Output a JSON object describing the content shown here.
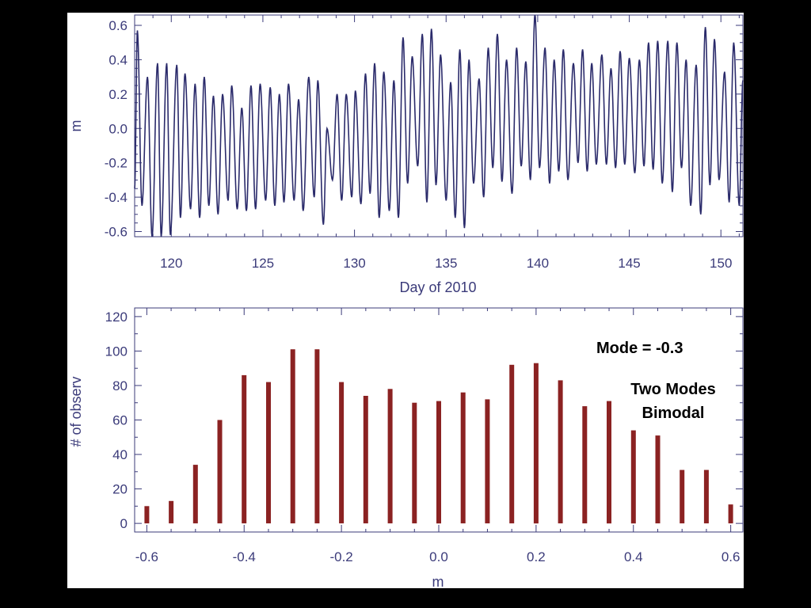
{
  "colors": {
    "background": "#000000",
    "panel": "#ffffff",
    "axis": "#3b3b7a",
    "line": "#2b2b6b",
    "bar": "#8b2222",
    "annotation": "#000000"
  },
  "chart_data": [
    {
      "type": "line",
      "title": "",
      "xlabel": "Day of 2010",
      "ylabel": "m",
      "xlim": [
        118,
        151.2
      ],
      "ylim": [
        -0.63,
        0.66
      ],
      "xticks": [
        120,
        125,
        130,
        135,
        140,
        145,
        150
      ],
      "xtick_labels": [
        "120",
        "125",
        "130",
        "135",
        "140",
        "145",
        "150"
      ],
      "yticks": [
        0.6,
        0.4,
        0.2,
        0.0,
        -0.2,
        -0.4,
        -0.6
      ],
      "ytick_labels": [
        "0.6",
        "0.4",
        "0.2",
        "0.0",
        "-0.2",
        "-0.4",
        "-0.6"
      ],
      "grid": false,
      "series": [
        {
          "period_days": 0.5175,
          "x": [
            118.15,
            118.4,
            118.7,
            118.95,
            119.25,
            119.45,
            119.75,
            119.95,
            120.3,
            120.5,
            120.75,
            121.05,
            121.3,
            121.55,
            121.8,
            122.05,
            122.3,
            122.55,
            122.8,
            123.1,
            123.3,
            123.6,
            123.85,
            124.1,
            124.35,
            124.6,
            124.85,
            125.15,
            125.4,
            125.65,
            125.9,
            126.15,
            126.4,
            126.7,
            126.95,
            127.2,
            127.5,
            127.8,
            128.0,
            128.3,
            128.5,
            128.8,
            129.05,
            129.3,
            129.55,
            129.85,
            130.05,
            130.35,
            130.6,
            130.85,
            131.1,
            131.35,
            131.6,
            131.9,
            132.15,
            132.4,
            132.65,
            132.9,
            133.15,
            133.45,
            133.7,
            133.95,
            134.2,
            134.45,
            134.7,
            135.0,
            135.25,
            135.5,
            135.75,
            136.0,
            136.25,
            136.5,
            136.8,
            137.05,
            137.3,
            137.55,
            137.8,
            138.05,
            138.3,
            138.6,
            138.85,
            139.1,
            139.35,
            139.6,
            139.85,
            140.1,
            140.4,
            140.65,
            140.9,
            141.15,
            141.4,
            141.65,
            141.95,
            142.2,
            142.45,
            142.7,
            142.95,
            143.2,
            143.5,
            143.75,
            144.0,
            144.25,
            144.5,
            144.75,
            145.0,
            145.3,
            145.55,
            145.8,
            146.05,
            146.3,
            146.55,
            146.8,
            147.1,
            147.35,
            147.6,
            147.85,
            148.1,
            148.35,
            148.65,
            148.9,
            149.15,
            149.4,
            149.65,
            149.9,
            150.2,
            150.45,
            150.7,
            151.0
          ],
          "y": [
            0.57,
            -0.45,
            0.3,
            -0.63,
            0.38,
            -0.63,
            0.38,
            -0.62,
            0.37,
            -0.52,
            0.32,
            -0.47,
            0.26,
            -0.52,
            0.3,
            -0.45,
            0.19,
            -0.5,
            0.2,
            -0.42,
            0.25,
            -0.47,
            0.12,
            -0.48,
            0.25,
            -0.47,
            0.26,
            -0.42,
            0.24,
            -0.45,
            0.2,
            -0.43,
            0.26,
            -0.42,
            0.17,
            -0.48,
            0.3,
            -0.4,
            0.28,
            -0.56,
            0.0,
            -0.3,
            0.2,
            -0.42,
            0.2,
            -0.4,
            0.22,
            -0.44,
            0.32,
            -0.38,
            0.38,
            -0.52,
            0.33,
            -0.48,
            0.28,
            -0.52,
            0.53,
            -0.32,
            0.42,
            -0.22,
            0.55,
            -0.43,
            0.58,
            -0.33,
            0.43,
            -0.42,
            0.27,
            -0.52,
            0.46,
            -0.58,
            0.4,
            -0.32,
            0.29,
            -0.4,
            0.47,
            -0.23,
            0.55,
            -0.31,
            0.4,
            -0.38,
            0.47,
            -0.22,
            0.39,
            -0.3,
            0.67,
            -0.23,
            0.47,
            -0.32,
            0.4,
            -0.25,
            0.46,
            -0.3,
            0.38,
            -0.2,
            0.46,
            -0.25,
            0.38,
            -0.21,
            0.43,
            -0.21,
            0.35,
            -0.23,
            0.45,
            -0.21,
            0.41,
            -0.26,
            0.4,
            -0.22,
            0.5,
            -0.24,
            0.51,
            -0.32,
            0.51,
            -0.37,
            0.5,
            -0.23,
            0.4,
            -0.45,
            0.37,
            -0.5,
            0.59,
            -0.33,
            0.52,
            -0.3,
            0.33,
            -0.43,
            0.5,
            -0.45
          ]
        }
      ]
    },
    {
      "type": "bar",
      "title": "",
      "xlabel": "m",
      "ylabel": "# of observ",
      "xlim": [
        -0.625,
        0.625
      ],
      "ylim": [
        -5,
        125
      ],
      "xticks": [
        -0.6,
        -0.4,
        -0.2,
        0.0,
        0.2,
        0.4,
        0.6
      ],
      "xtick_labels": [
        "-0.6",
        "-0.4",
        "-0.2",
        "0.0",
        "0.2",
        "0.4",
        "0.6"
      ],
      "yticks": [
        120,
        100,
        80,
        60,
        40,
        20,
        0
      ],
      "ytick_labels": [
        "120",
        "100",
        "80",
        "60",
        "40",
        "20",
        "0"
      ],
      "grid": false,
      "x": [
        -0.6,
        -0.55,
        -0.5,
        -0.45,
        -0.4,
        -0.35,
        -0.3,
        -0.25,
        -0.2,
        -0.15,
        -0.1,
        -0.05,
        0.0,
        0.05,
        0.1,
        0.15,
        0.2,
        0.25,
        0.3,
        0.35,
        0.4,
        0.45,
        0.5,
        0.55,
        0.6
      ],
      "values": [
        10,
        13,
        34,
        60,
        86,
        82,
        101,
        101,
        82,
        74,
        78,
        70,
        71,
        76,
        72,
        92,
        93,
        83,
        68,
        71,
        54,
        51,
        31,
        31,
        11
      ],
      "annotations": [
        "Mode = -0.3",
        "Two Modes",
        "Bimodal"
      ]
    }
  ]
}
